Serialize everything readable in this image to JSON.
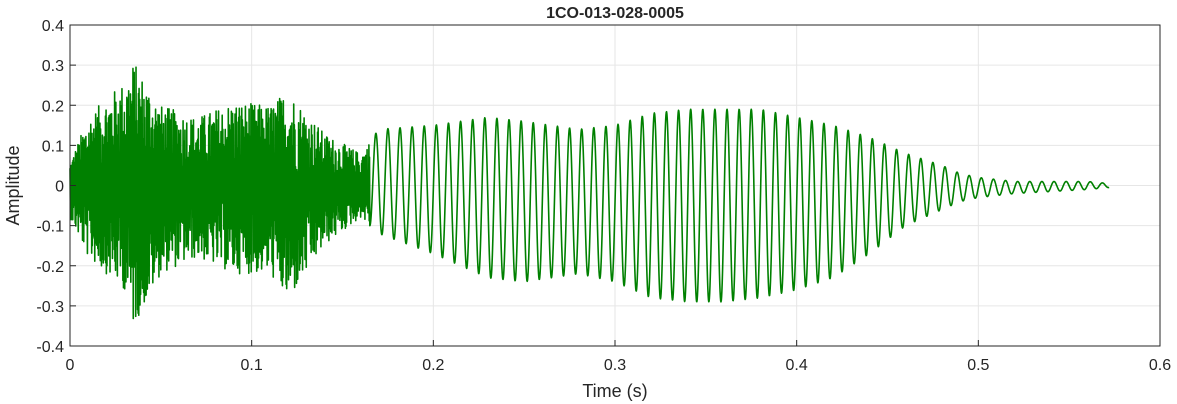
{
  "chart_data": {
    "type": "line",
    "title": "1CO-013-028-0005",
    "xlabel": "Time (s)",
    "ylabel": "Amplitude",
    "xlim": [
      0,
      0.6
    ],
    "ylim": [
      -0.4,
      0.4
    ],
    "xticks": [
      "0",
      "0.1",
      "0.2",
      "0.3",
      "0.4",
      "0.5",
      "0.6"
    ],
    "yticks": [
      "0.4",
      "0.3",
      "0.2",
      "0.1",
      "0",
      "-0.1",
      "-0.2",
      "-0.3",
      "-0.4"
    ],
    "grid": true,
    "line_color": "#008000",
    "series": [
      {
        "name": "",
        "x_start": 0.0,
        "x_end": 0.572,
        "envelope_times": [
          0.0,
          0.01,
          0.02,
          0.03,
          0.035,
          0.05,
          0.07,
          0.09,
          0.11,
          0.12,
          0.14,
          0.16,
          0.17,
          0.2,
          0.23,
          0.25,
          0.28,
          0.3,
          0.32,
          0.34,
          0.36,
          0.38,
          0.4,
          0.42,
          0.44,
          0.46,
          0.48,
          0.49,
          0.5,
          0.52,
          0.54,
          0.56,
          0.572
        ],
        "envelope_max": [
          0.06,
          0.17,
          0.22,
          0.26,
          0.31,
          0.2,
          0.17,
          0.21,
          0.2,
          0.24,
          0.13,
          0.08,
          0.14,
          0.15,
          0.17,
          0.16,
          0.14,
          0.15,
          0.18,
          0.19,
          0.19,
          0.19,
          0.17,
          0.15,
          0.12,
          0.08,
          0.05,
          0.03,
          0.02,
          0.01,
          0.01,
          0.01,
          0.005
        ],
        "envelope_min": [
          -0.08,
          -0.18,
          -0.22,
          -0.26,
          -0.35,
          -0.22,
          -0.18,
          -0.22,
          -0.22,
          -0.29,
          -0.15,
          -0.08,
          -0.12,
          -0.17,
          -0.23,
          -0.24,
          -0.22,
          -0.24,
          -0.28,
          -0.29,
          -0.29,
          -0.28,
          -0.26,
          -0.23,
          -0.17,
          -0.1,
          -0.06,
          -0.04,
          -0.03,
          -0.02,
          -0.015,
          -0.01,
          -0.005
        ],
        "noisy_until": 0.165,
        "oscillation_hz": 150
      }
    ]
  }
}
